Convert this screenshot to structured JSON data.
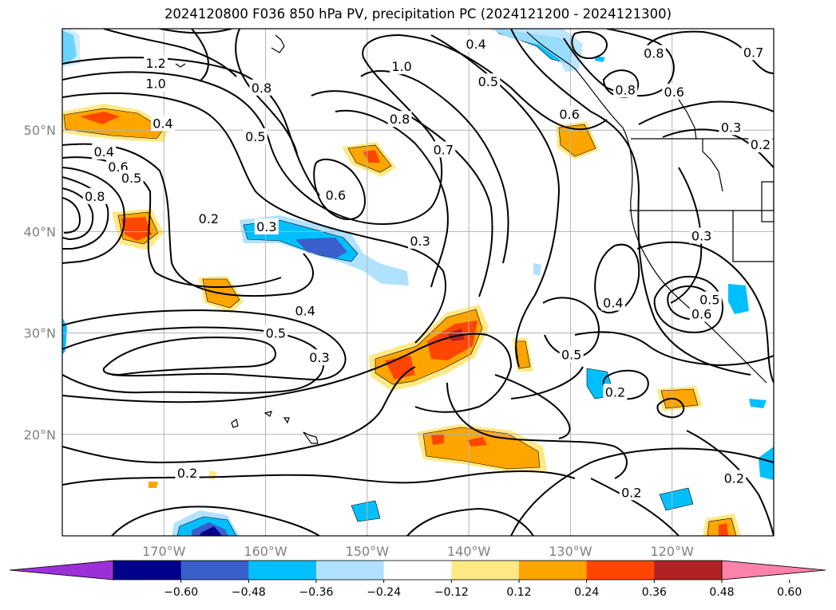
{
  "chart_data": {
    "type": "map",
    "title": "2024120800 F036 850 hPa PV, precipitation PC (2024121200 - 2024121300)",
    "xlim": [
      -180,
      -110
    ],
    "ylim": [
      10,
      60
    ],
    "lon_ticks": [
      {
        "value": -170,
        "label": "170°W"
      },
      {
        "value": -160,
        "label": "160°W"
      },
      {
        "value": -150,
        "label": "150°W"
      },
      {
        "value": -140,
        "label": "140°W"
      },
      {
        "value": -130,
        "label": "130°W"
      },
      {
        "value": -120,
        "label": "120°W"
      }
    ],
    "lat_ticks": [
      {
        "value": 20,
        "label": "20°N"
      },
      {
        "value": 30,
        "label": "30°N"
      },
      {
        "value": 40,
        "label": "40°N"
      },
      {
        "value": 50,
        "label": "50°N"
      }
    ],
    "grid": true,
    "colorbar": {
      "orientation": "horizontal",
      "extend": "both",
      "levels": [
        -0.6,
        -0.48,
        -0.36,
        -0.24,
        -0.12,
        0.12,
        0.24,
        0.36,
        0.48,
        0.6
      ],
      "tick_labels": [
        "−0.60",
        "−0.48",
        "−0.36",
        "−0.24",
        "−0.12",
        "0.12",
        "0.24",
        "0.36",
        "0.48",
        "0.60"
      ],
      "colors": [
        "#9b30d9",
        "#00008b",
        "#3a5fcd",
        "#00bfff",
        "#b0e2ff",
        "#ffffff",
        "#ffe985",
        "#ffa500",
        "#ff4500",
        "#b22222",
        "#ff82ab"
      ]
    },
    "pv_contour_labels": [
      {
        "text": "1.2",
        "lon": -170.8,
        "lat": 56.6
      },
      {
        "text": "1.0",
        "lon": -170.8,
        "lat": 54.6
      },
      {
        "text": "0.8",
        "lon": -160.4,
        "lat": 54.2
      },
      {
        "text": "0.4",
        "lon": -170.1,
        "lat": 50.7
      },
      {
        "text": "0.5",
        "lon": -161.0,
        "lat": 49.4
      },
      {
        "text": "0.4",
        "lon": -175.9,
        "lat": 47.9
      },
      {
        "text": "0.6",
        "lon": -174.5,
        "lat": 46.4
      },
      {
        "text": "0.5",
        "lon": -173.2,
        "lat": 45.3
      },
      {
        "text": "0.8",
        "lon": -176.8,
        "lat": 43.5
      },
      {
        "text": "0.2",
        "lon": -165.6,
        "lat": 41.3
      },
      {
        "text": "0.3",
        "lon": -159.9,
        "lat": 40.5
      },
      {
        "text": "0.6",
        "lon": -153.1,
        "lat": 43.6
      },
      {
        "text": "1.0",
        "lon": -146.6,
        "lat": 56.3
      },
      {
        "text": "0.8",
        "lon": -146.8,
        "lat": 51.1
      },
      {
        "text": "0.7",
        "lon": -142.5,
        "lat": 48.1
      },
      {
        "text": "0.4",
        "lon": -139.3,
        "lat": 58.5
      },
      {
        "text": "0.5",
        "lon": -138.1,
        "lat": 54.8
      },
      {
        "text": "0.6",
        "lon": -130.1,
        "lat": 51.6
      },
      {
        "text": "0.8",
        "lon": -121.8,
        "lat": 57.6
      },
      {
        "text": "0.7",
        "lon": -112.0,
        "lat": 57.7
      },
      {
        "text": "0.8",
        "lon": -124.6,
        "lat": 54.0
      },
      {
        "text": "0.6",
        "lon": -119.8,
        "lat": 53.8
      },
      {
        "text": "0.3",
        "lon": -114.2,
        "lat": 50.3
      },
      {
        "text": "0.2",
        "lon": -111.3,
        "lat": 48.6
      },
      {
        "text": "0.3",
        "lon": -144.8,
        "lat": 39.1
      },
      {
        "text": "0.3",
        "lon": -117.1,
        "lat": 39.6
      },
      {
        "text": "0.4",
        "lon": -125.8,
        "lat": 33.0
      },
      {
        "text": "0.5",
        "lon": -116.3,
        "lat": 33.3
      },
      {
        "text": "0.6",
        "lon": -117.1,
        "lat": 31.9
      },
      {
        "text": "0.4",
        "lon": -156.1,
        "lat": 32.2
      },
      {
        "text": "0.5",
        "lon": -159.0,
        "lat": 30.0
      },
      {
        "text": "0.3",
        "lon": -154.7,
        "lat": 27.6
      },
      {
        "text": "0.5",
        "lon": -129.9,
        "lat": 27.9
      },
      {
        "text": "0.2",
        "lon": -125.6,
        "lat": 24.2
      },
      {
        "text": "0.2",
        "lon": -167.7,
        "lat": 16.2
      },
      {
        "text": "0.2",
        "lon": -124.0,
        "lat": 14.3
      },
      {
        "text": "0.2",
        "lon": -113.9,
        "lat": 15.7
      }
    ]
  }
}
